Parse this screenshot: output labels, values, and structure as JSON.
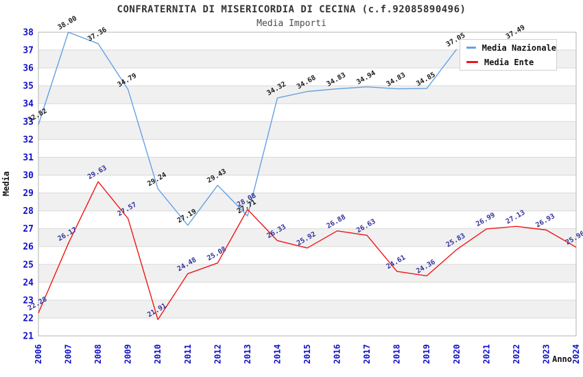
{
  "page": {
    "title": "CONFRATERNITA DI MISERICORDIA DI CECINA (c.f.92085890496)",
    "subtitle": "Media Importi"
  },
  "axes": {
    "y_title": "Media",
    "x_title": "Anno"
  },
  "legend": {
    "items": [
      {
        "label": "Media Nazionale",
        "color": "#64a0e1"
      },
      {
        "label": "Media Ente",
        "color": "#f01414"
      }
    ]
  },
  "chart_data": {
    "type": "line",
    "title": "CONFRATERNITA DI MISERICORDIA DI CECINA (c.f.92085890496)",
    "subtitle": "Media Importi",
    "xlabel": "Anno",
    "ylabel": "Media",
    "ylim": [
      21,
      38
    ],
    "ytick_step": 1,
    "grid": true,
    "legend_position": "top-right",
    "categories": [
      "2006",
      "2007",
      "2008",
      "2009",
      "2010",
      "2011",
      "2012",
      "2013",
      "2014",
      "2015",
      "2016",
      "2017",
      "2018",
      "2019",
      "2020",
      "2021",
      "2022",
      "2023",
      "2024"
    ],
    "series": [
      {
        "name": "Media Nazionale",
        "color": "#64a0e1",
        "label_color": "#1c1c1c",
        "values": [
          32.82,
          38.0,
          37.36,
          34.79,
          29.24,
          27.19,
          29.43,
          27.71,
          34.32,
          34.68,
          34.83,
          34.94,
          34.83,
          34.85,
          37.05,
          null,
          37.49,
          null,
          null
        ]
      },
      {
        "name": "Media Ente",
        "color": "#f01414",
        "label_color": "#32329b",
        "values": [
          22.28,
          26.17,
          29.63,
          27.57,
          21.91,
          24.48,
          25.08,
          28.08,
          26.33,
          25.92,
          26.88,
          26.63,
          24.61,
          24.36,
          25.83,
          26.99,
          27.13,
          26.93,
          25.96
        ]
      }
    ],
    "colors": {
      "band_gray": "#f0f0f0",
      "band_white": "#ffffff",
      "gridline": "#d9d9d9",
      "plot_border": "#b3b3b3",
      "tick_label": "#0f0fcc"
    }
  }
}
